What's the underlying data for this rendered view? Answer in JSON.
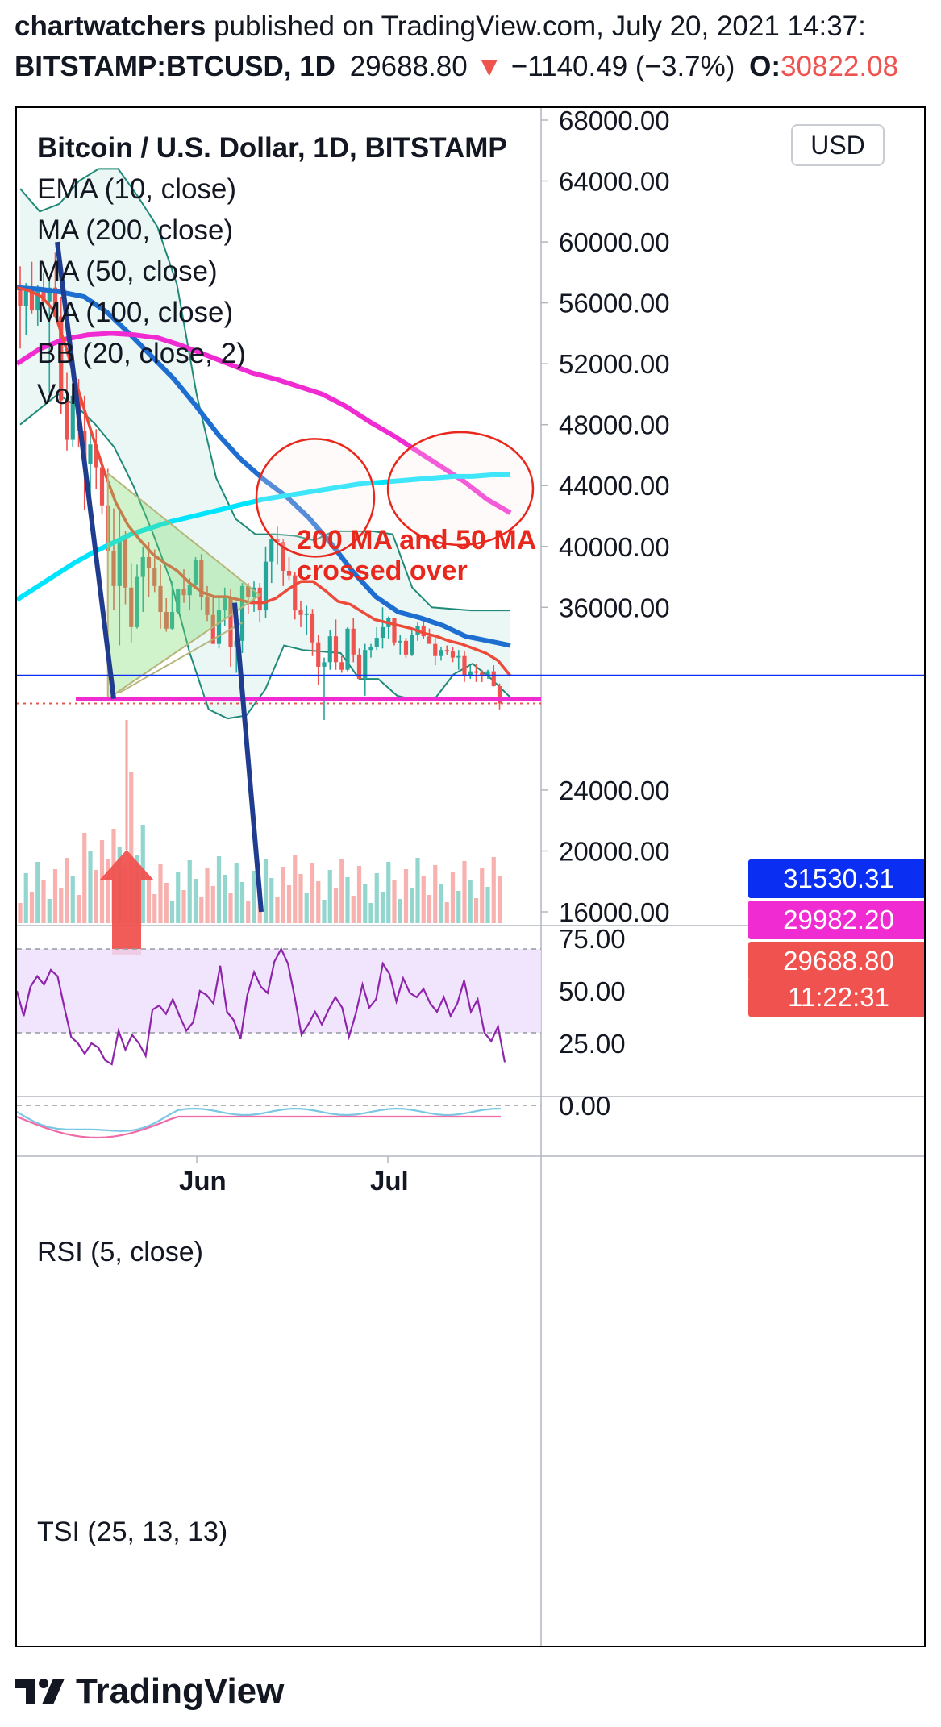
{
  "header": {
    "author": "chartwatchers",
    "published_text": "published on TradingView.com, July 20, 2021 14:37:",
    "symbol": "BITSTAMP:BTCUSD, 1D",
    "last_price": "29688.80",
    "change_arrow": "▼",
    "change": "−1140.49 (−3.7%)",
    "open_label": "O:",
    "open_value": "30822.08"
  },
  "legend": {
    "title": "Bitcoin / U.S. Dollar, 1D, BITSTAMP",
    "indicators": [
      "EMA (10, close)",
      "MA (200, close)",
      "MA (50, close)",
      "MA (100, close)",
      "BB (20, close, 2)",
      "Vol"
    ]
  },
  "currency_button": "USD",
  "annotation": {
    "line1": "200 MA and 50 MA",
    "line2": "crossed over"
  },
  "price_tags": [
    {
      "value": "31530.31",
      "color": "#0a2ff2"
    },
    {
      "value": "29982.20",
      "color": "#f02bd2"
    },
    {
      "value": "29688.80",
      "color": "#f0524f"
    },
    {
      "value": "11:22:31",
      "color": "#f0524f"
    }
  ],
  "rsi": {
    "label": "RSI (5, close)",
    "ticks": [
      "75.00",
      "50.00",
      "25.00"
    ]
  },
  "tsi": {
    "label": "TSI (25, 13, 13)",
    "ticks": [
      "0.00"
    ]
  },
  "footer": {
    "brand": "TradingView",
    "logo": "tradingview-logo-icon"
  },
  "colors": {
    "up": "#26a69a",
    "down": "#ef5350",
    "ema10": "#ee4a3a",
    "ma200": "#00e5ff",
    "ma50": "#f02bd2",
    "ma100": "#1e6ed2",
    "bb": "#1f8a78",
    "rsi": "#8e24aa",
    "annotation": "#e8281c"
  },
  "chart_data": {
    "type": "candlestick",
    "symbol": "BITSTAMP:BTCUSD",
    "interval": "1D",
    "y_axis_ticks": [
      16000,
      20000,
      24000,
      28000,
      32000,
      36000,
      40000,
      44000,
      48000,
      52000,
      56000,
      60000,
      64000,
      68000
    ],
    "y_axis_labels": [
      "16000.00",
      "20000.00",
      "24000.00",
      "36000.00",
      "40000.00",
      "44000.00",
      "48000.00",
      "52000.00",
      "56000.00",
      "60000.00",
      "64000.00",
      "68000.00"
    ],
    "ylim": [
      15000,
      71000
    ],
    "x_axis_labels": [
      "Jun",
      "Jul"
    ],
    "candles": [
      {
        "o": 57200,
        "h": 58400,
        "l": 53000,
        "c": 55800
      },
      {
        "o": 55800,
        "h": 57300,
        "l": 53900,
        "c": 56800
      },
      {
        "o": 56800,
        "h": 58700,
        "l": 55300,
        "c": 55500
      },
      {
        "o": 55500,
        "h": 57200,
        "l": 54500,
        "c": 57000
      },
      {
        "o": 57000,
        "h": 58000,
        "l": 55600,
        "c": 56100
      },
      {
        "o": 56100,
        "h": 57600,
        "l": 50100,
        "c": 57000
      },
      {
        "o": 57000,
        "h": 59300,
        "l": 55500,
        "c": 55100
      },
      {
        "o": 55100,
        "h": 56400,
        "l": 48700,
        "c": 49600
      },
      {
        "o": 49600,
        "h": 51400,
        "l": 46300,
        "c": 47000
      },
      {
        "o": 47000,
        "h": 50400,
        "l": 46500,
        "c": 49900
      },
      {
        "o": 49900,
        "h": 51000,
        "l": 46500,
        "c": 47600
      },
      {
        "o": 47600,
        "h": 49900,
        "l": 42400,
        "c": 45400
      },
      {
        "o": 45400,
        "h": 47800,
        "l": 42800,
        "c": 46700
      },
      {
        "o": 46700,
        "h": 47700,
        "l": 43800,
        "c": 45200
      },
      {
        "o": 45200,
        "h": 45600,
        "l": 42100,
        "c": 42700
      },
      {
        "o": 42700,
        "h": 45100,
        "l": 30000,
        "c": 39700
      },
      {
        "o": 39700,
        "h": 42500,
        "l": 35800,
        "c": 37400
      },
      {
        "o": 37400,
        "h": 42300,
        "l": 33500,
        "c": 40500
      },
      {
        "o": 40500,
        "h": 41000,
        "l": 36200,
        "c": 37300
      },
      {
        "o": 37300,
        "h": 38900,
        "l": 33700,
        "c": 34700
      },
      {
        "o": 34700,
        "h": 38800,
        "l": 34600,
        "c": 38000
      },
      {
        "o": 38000,
        "h": 40000,
        "l": 35700,
        "c": 39300
      },
      {
        "o": 39300,
        "h": 40300,
        "l": 36700,
        "c": 38600
      },
      {
        "o": 38600,
        "h": 39800,
        "l": 37000,
        "c": 37400
      },
      {
        "o": 37400,
        "h": 38800,
        "l": 34600,
        "c": 35700
      },
      {
        "o": 35700,
        "h": 36600,
        "l": 34400,
        "c": 34600
      },
      {
        "o": 34600,
        "h": 37700,
        "l": 34500,
        "c": 35700
      },
      {
        "o": 35700,
        "h": 37200,
        "l": 35600,
        "c": 37200
      },
      {
        "o": 37200,
        "h": 38500,
        "l": 36300,
        "c": 36800
      },
      {
        "o": 36800,
        "h": 37900,
        "l": 35800,
        "c": 37500
      },
      {
        "o": 37500,
        "h": 39300,
        "l": 37200,
        "c": 39100
      },
      {
        "o": 39100,
        "h": 39500,
        "l": 35800,
        "c": 36700
      },
      {
        "o": 36700,
        "h": 37400,
        "l": 35100,
        "c": 35500
      },
      {
        "o": 35500,
        "h": 36800,
        "l": 33600,
        "c": 33600
      },
      {
        "o": 33600,
        "h": 36800,
        "l": 33300,
        "c": 35800
      },
      {
        "o": 35800,
        "h": 37300,
        "l": 34800,
        "c": 36600
      },
      {
        "o": 36600,
        "h": 37200,
        "l": 32100,
        "c": 33400
      },
      {
        "o": 33400,
        "h": 34000,
        "l": 31700,
        "c": 33800
      },
      {
        "o": 33800,
        "h": 37600,
        "l": 33000,
        "c": 37400
      },
      {
        "o": 37400,
        "h": 37600,
        "l": 35600,
        "c": 36700
      },
      {
        "o": 36700,
        "h": 37700,
        "l": 35700,
        "c": 37300
      },
      {
        "o": 37300,
        "h": 37600,
        "l": 35000,
        "c": 35800
      },
      {
        "o": 35800,
        "h": 40000,
        "l": 35300,
        "c": 39000
      },
      {
        "o": 39000,
        "h": 40700,
        "l": 37600,
        "c": 40500
      },
      {
        "o": 40500,
        "h": 41300,
        "l": 38800,
        "c": 40300
      },
      {
        "o": 40300,
        "h": 40500,
        "l": 37400,
        "c": 38400
      },
      {
        "o": 38400,
        "h": 39300,
        "l": 37800,
        "c": 38100
      },
      {
        "o": 38100,
        "h": 38300,
        "l": 35200,
        "c": 35800
      },
      {
        "o": 35800,
        "h": 36400,
        "l": 34700,
        "c": 35500
      },
      {
        "o": 35500,
        "h": 36100,
        "l": 34200,
        "c": 35600
      },
      {
        "o": 35600,
        "h": 35900,
        "l": 32800,
        "c": 33700
      },
      {
        "o": 33700,
        "h": 34200,
        "l": 30900,
        "c": 32100
      },
      {
        "o": 32100,
        "h": 32700,
        "l": 28600,
        "c": 32400
      },
      {
        "o": 32400,
        "h": 34500,
        "l": 31900,
        "c": 34100
      },
      {
        "o": 34100,
        "h": 35200,
        "l": 31900,
        "c": 32400
      },
      {
        "o": 32400,
        "h": 32800,
        "l": 31700,
        "c": 31900
      },
      {
        "o": 31900,
        "h": 34700,
        "l": 31800,
        "c": 34600
      },
      {
        "o": 34600,
        "h": 35300,
        "l": 32400,
        "c": 32900
      },
      {
        "o": 32900,
        "h": 33300,
        "l": 31300,
        "c": 31300
      },
      {
        "o": 31300,
        "h": 33600,
        "l": 30200,
        "c": 33200
      },
      {
        "o": 33200,
        "h": 33600,
        "l": 32700,
        "c": 33400
      },
      {
        "o": 33400,
        "h": 34700,
        "l": 33200,
        "c": 34000
      },
      {
        "o": 34000,
        "h": 36000,
        "l": 33300,
        "c": 34700
      },
      {
        "o": 34700,
        "h": 35400,
        "l": 33900,
        "c": 35300
      },
      {
        "o": 35300,
        "h": 35300,
        "l": 33500,
        "c": 33700
      },
      {
        "o": 33700,
        "h": 34200,
        "l": 32900,
        "c": 33800
      },
      {
        "o": 33800,
        "h": 34000,
        "l": 32700,
        "c": 32900
      },
      {
        "o": 32900,
        "h": 34600,
        "l": 32800,
        "c": 34200
      },
      {
        "o": 34200,
        "h": 35000,
        "l": 33800,
        "c": 34800
      },
      {
        "o": 34800,
        "h": 35200,
        "l": 33900,
        "c": 34100
      },
      {
        "o": 34100,
        "h": 34600,
        "l": 33800,
        "c": 33600
      },
      {
        "o": 33600,
        "h": 34000,
        "l": 32200,
        "c": 32800
      },
      {
        "o": 32800,
        "h": 33400,
        "l": 32500,
        "c": 33200
      },
      {
        "o": 33200,
        "h": 33500,
        "l": 32900,
        "c": 33100
      },
      {
        "o": 33100,
        "h": 33400,
        "l": 32400,
        "c": 32700
      },
      {
        "o": 32700,
        "h": 33200,
        "l": 31900,
        "c": 32800
      },
      {
        "o": 32800,
        "h": 33100,
        "l": 31100,
        "c": 31500
      },
      {
        "o": 31500,
        "h": 32200,
        "l": 31300,
        "c": 31800
      },
      {
        "o": 31800,
        "h": 32300,
        "l": 31100,
        "c": 31700
      },
      {
        "o": 31700,
        "h": 31900,
        "l": 31100,
        "c": 31500
      },
      {
        "o": 31500,
        "h": 31900,
        "l": 31300,
        "c": 31800
      },
      {
        "o": 31800,
        "h": 32200,
        "l": 30800,
        "c": 30830
      },
      {
        "o": 30830,
        "h": 31000,
        "l": 29300,
        "c": 29689
      }
    ],
    "series": [
      {
        "name": "EMA (10, close)",
        "color": "#ee4a3a",
        "values": [
          57000,
          56800,
          56400,
          55500,
          53000,
          50200,
          47600,
          45100,
          42900,
          41400,
          40400,
          39500,
          38900,
          38400,
          37600,
          37000,
          36700,
          36700,
          36500,
          36300,
          36300,
          36600,
          37200,
          37700,
          37700,
          37100,
          36400,
          36200,
          35700,
          35200,
          35000,
          34800,
          34600,
          34300,
          34100,
          33800,
          33600,
          33300,
          33000,
          32500,
          31500
        ]
      },
      {
        "name": "MA (200, close)",
        "color": "#00e5ff",
        "values": [
          36500,
          37300,
          38100,
          38900,
          39600,
          40200,
          40800,
          41200,
          41600,
          41900,
          42200,
          42500,
          42800,
          43100,
          43300,
          43500,
          43700,
          43900,
          44100,
          44200,
          44300,
          44400,
          44500,
          44600,
          44600,
          44700,
          44700
        ]
      },
      {
        "name": "MA (50, close)",
        "color": "#f02bd2",
        "values": [
          52000,
          53000,
          53600,
          53900,
          54000,
          53900,
          53700,
          53200,
          52600,
          52000,
          51400,
          51000,
          50500,
          50000,
          49200,
          48200,
          47300,
          46300,
          45300,
          44300,
          43100,
          42200
        ]
      },
      {
        "name": "MA (100, close)",
        "color": "#1e6ed2",
        "values": [
          57000,
          56900,
          56700,
          56400,
          55400,
          54000,
          52500,
          51000,
          49200,
          47300,
          45700,
          44400,
          43300,
          41900,
          40200,
          38300,
          36700,
          35700,
          35300,
          34800,
          34100,
          33800,
          33500
        ]
      },
      {
        "name": "BB upper",
        "color": "#1f8a78",
        "values": [
          63500,
          62000,
          62500,
          64000,
          64800,
          64800,
          63000,
          61000,
          57200,
          50000,
          44500,
          41800,
          40800,
          40800,
          40700,
          40400,
          41000,
          41000,
          41000,
          40800,
          37300,
          36000,
          35900,
          35800,
          35800,
          35800
        ]
      },
      {
        "name": "BB lower",
        "color": "#1f8a78",
        "values": [
          48000,
          49000,
          50000,
          49200,
          48000,
          46500,
          44000,
          41000,
          37700,
          33000,
          29300,
          28700,
          28900,
          30600,
          33500,
          33200,
          33100,
          33000,
          31300,
          31300,
          30200,
          29900,
          30000,
          31600,
          32300,
          31300,
          30100
        ]
      }
    ],
    "volume_note": "volume histogram shown with up/down colored bars",
    "rsi_values": [
      50,
      38,
      52,
      57,
      53,
      60,
      57,
      42,
      28,
      25,
      20,
      25,
      23,
      17,
      15,
      31,
      22,
      29,
      25,
      19,
      41,
      43,
      39,
      46,
      38,
      31,
      35,
      50,
      48,
      44,
      62,
      40,
      36,
      27,
      48,
      59,
      52,
      49,
      64,
      70,
      63,
      47,
      29,
      34,
      40,
      34,
      41,
      47,
      42,
      28,
      39,
      53,
      42,
      46,
      63,
      58,
      45,
      56,
      49,
      47,
      51,
      44,
      40,
      47,
      38,
      44,
      55,
      40,
      46,
      30,
      26,
      33,
      16
    ]
  }
}
